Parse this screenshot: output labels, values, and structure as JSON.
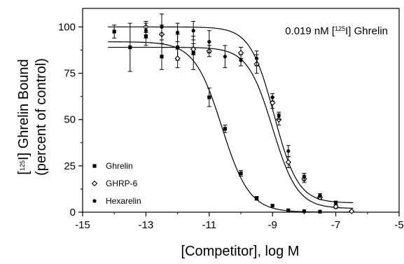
{
  "chart_data": {
    "type": "scatter",
    "title": "",
    "annotation": {
      "prefix": "0.019 nM [",
      "superscript": "125",
      "suffix": "I] Ghrelin"
    },
    "xlabel": "[Competitor], log M",
    "ylabel": {
      "line1_prefix": "[",
      "line1_superscript": "125",
      "line1_suffix": "I] Ghrelin Bound",
      "line2": "(percent of control)"
    },
    "xlim": [
      -15,
      -5
    ],
    "ylim": [
      0,
      110
    ],
    "x_ticks": [
      -15,
      -13,
      -11,
      -9,
      -7,
      -5
    ],
    "y_ticks": [
      0,
      25,
      50,
      75,
      100
    ],
    "grid": false,
    "legend_position": "bottom-left",
    "series": [
      {
        "name": "Ghrelin",
        "marker": "square",
        "color": "#000000",
        "points": [
          {
            "x": -14,
            "y": 97.5,
            "err": 3.5
          },
          {
            "x": -13.5,
            "y": 89,
            "err": 13
          },
          {
            "x": -13,
            "y": 95,
            "err": 5
          },
          {
            "x": -12.5,
            "y": 84,
            "err": 7
          },
          {
            "x": -12,
            "y": 89,
            "err": 7
          },
          {
            "x": -11.5,
            "y": 86,
            "err": 9
          },
          {
            "x": -11,
            "y": 62,
            "err": 5
          },
          {
            "x": -10.5,
            "y": 45,
            "err": 2
          },
          {
            "x": -10,
            "y": 21,
            "err": 1.5
          },
          {
            "x": -9.5,
            "y": 7.5,
            "err": 1
          },
          {
            "x": -9,
            "y": 3.5,
            "err": 0.5
          },
          {
            "x": -8.5,
            "y": 1,
            "err": 0.5
          },
          {
            "x": -8,
            "y": 0.5,
            "err": 0.5
          },
          {
            "x": -7.5,
            "y": 0.3,
            "err": 0.3
          }
        ],
        "fit": {
          "top": 92,
          "bottom": 0,
          "log_ic50": -10.6,
          "hill": 1
        }
      },
      {
        "name": "GHRP-6",
        "marker": "diamond-open",
        "color": "#000000",
        "points": [
          {
            "x": -13,
            "y": 100,
            "err": 3
          },
          {
            "x": -12.5,
            "y": 96,
            "err": 5
          },
          {
            "x": -12,
            "y": 83,
            "err": 5
          },
          {
            "x": -11.5,
            "y": 88,
            "err": 3
          },
          {
            "x": -11,
            "y": 87,
            "err": 3
          },
          {
            "x": -10,
            "y": 86,
            "err": 3
          },
          {
            "x": -9.5,
            "y": 80,
            "err": 5
          },
          {
            "x": -9,
            "y": 59,
            "err": 3
          },
          {
            "x": -8.8,
            "y": 50,
            "err": 3
          },
          {
            "x": -8.5,
            "y": 27,
            "err": 3
          },
          {
            "x": -8,
            "y": 18,
            "err": 2
          },
          {
            "x": -7.5,
            "y": 8,
            "err": 1
          },
          {
            "x": -7,
            "y": 3,
            "err": 1
          },
          {
            "x": -6.5,
            "y": 0.5,
            "err": 0.5
          }
        ],
        "fit": {
          "top": 89,
          "bottom": 2,
          "log_ic50": -9.0,
          "hill": 1.1
        }
      },
      {
        "name": "Hexarelin",
        "marker": "circle",
        "color": "#000000",
        "points": [
          {
            "x": -13,
            "y": 98,
            "err": 4
          },
          {
            "x": -12.5,
            "y": 100,
            "err": 7
          },
          {
            "x": -12,
            "y": 97,
            "err": 5
          },
          {
            "x": -11.5,
            "y": 98,
            "err": 5
          },
          {
            "x": -11,
            "y": 92,
            "err": 6
          },
          {
            "x": -10.5,
            "y": 84,
            "err": 6
          },
          {
            "x": -10,
            "y": 82,
            "err": 3
          },
          {
            "x": -9.5,
            "y": 83,
            "err": 4
          },
          {
            "x": -9,
            "y": 62,
            "err": 2
          },
          {
            "x": -8.8,
            "y": 52,
            "err": 2
          },
          {
            "x": -8.5,
            "y": 33,
            "err": 3
          },
          {
            "x": -8,
            "y": 19,
            "err": 2
          },
          {
            "x": -7.5,
            "y": 9,
            "err": 1
          },
          {
            "x": -7,
            "y": 5,
            "err": 1
          }
        ],
        "fit": {
          "top": 100,
          "bottom": 5,
          "log_ic50": -8.95,
          "hill": 1.15
        }
      }
    ]
  }
}
